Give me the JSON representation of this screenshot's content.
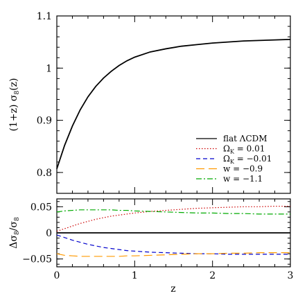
{
  "chart_data": [
    {
      "type": "line",
      "panel": "top",
      "ylabel": "(1+z)  σ8(z)",
      "ylabel_parts": {
        "prefix": "(1+z)  σ",
        "sub": "8",
        "suffix": "(z)"
      },
      "xlim": [
        0,
        3
      ],
      "ylim": [
        0.76,
        1.1
      ],
      "yticks": [
        0.8,
        0.9,
        1,
        1.1
      ],
      "ytick_labels": [
        "0.8",
        "0.9",
        "1",
        "1.1"
      ],
      "legend": "bottom-right",
      "x": [
        0,
        0.1,
        0.2,
        0.3,
        0.4,
        0.5,
        0.6,
        0.7,
        0.8,
        0.9,
        1.0,
        1.2,
        1.4,
        1.6,
        1.8,
        2.0,
        2.2,
        2.4,
        2.6,
        2.8,
        3.0
      ],
      "series": [
        {
          "name": "flat ΛCDM",
          "style": "solid",
          "color": "#000000",
          "values": [
            0.807,
            0.852,
            0.889,
            0.92,
            0.945,
            0.965,
            0.981,
            0.994,
            1.005,
            1.014,
            1.021,
            1.031,
            1.037,
            1.042,
            1.045,
            1.048,
            1.05,
            1.052,
            1.053,
            1.054,
            1.055
          ]
        }
      ],
      "legend_entries": [
        {
          "name": "flat ΛCDM",
          "style": "solid",
          "color": "#000000"
        },
        {
          "name": "ΩK = 0.01",
          "parts": {
            "pre": "Ω",
            "sub": "K",
            "post": " = 0.01"
          },
          "style": "dotted",
          "color": "#cc0000"
        },
        {
          "name": "ΩK = −0.01",
          "parts": {
            "pre": "Ω",
            "sub": "K",
            "post": " = −0.01"
          },
          "style": "dashed",
          "color": "#0000cc"
        },
        {
          "name": "w = −0.9",
          "style": "longdash",
          "color": "#ff9900"
        },
        {
          "name": "w = −1.1",
          "style": "dashdot",
          "color": "#00aa00"
        }
      ]
    },
    {
      "type": "line",
      "panel": "bottom",
      "xlabel": "z",
      "ylabel": "Δσ8/σ8",
      "ylabel_parts": {
        "a": "Δσ",
        "sub1": "8",
        "b": "/σ",
        "sub2": "8"
      },
      "xlim": [
        0,
        3
      ],
      "ylim": [
        -0.065,
        0.065
      ],
      "xticks": [
        0,
        1,
        2,
        3
      ],
      "xtick_labels": [
        "0",
        "1",
        "2",
        "3"
      ],
      "yticks": [
        -0.05,
        0,
        0.05
      ],
      "ytick_labels": [
        "−0.05",
        "0",
        "0.05"
      ],
      "x": [
        0,
        0.1,
        0.2,
        0.3,
        0.4,
        0.5,
        0.6,
        0.7,
        0.8,
        0.9,
        1.0,
        1.2,
        1.4,
        1.6,
        1.8,
        2.0,
        2.2,
        2.4,
        2.6,
        2.8,
        3.0
      ],
      "series": [
        {
          "name": "flat ΛCDM",
          "style": "solid",
          "color": "#000000",
          "values": [
            0,
            0,
            0,
            0,
            0,
            0,
            0,
            0,
            0,
            0,
            0,
            0,
            0,
            0,
            0,
            0,
            0,
            0,
            0,
            0,
            0
          ]
        },
        {
          "name": "ΩK = 0.01",
          "style": "dotted",
          "color": "#cc0000",
          "values": [
            0.003,
            0.008,
            0.013,
            0.018,
            0.022,
            0.026,
            0.029,
            0.032,
            0.034,
            0.036,
            0.038,
            0.041,
            0.043,
            0.045,
            0.047,
            0.048,
            0.049,
            0.05,
            0.05,
            0.051,
            0.051
          ]
        },
        {
          "name": "ΩK = −0.01",
          "style": "dashed",
          "color": "#0000cc",
          "values": [
            -0.004,
            -0.009,
            -0.014,
            -0.018,
            -0.022,
            -0.025,
            -0.028,
            -0.03,
            -0.032,
            -0.034,
            -0.035,
            -0.037,
            -0.038,
            -0.039,
            -0.04,
            -0.04,
            -0.041,
            -0.041,
            -0.041,
            -0.041,
            -0.041
          ]
        },
        {
          "name": "w = −0.9",
          "style": "longdash",
          "color": "#ff9900",
          "values": [
            -0.04,
            -0.043,
            -0.044,
            -0.045,
            -0.045,
            -0.045,
            -0.045,
            -0.045,
            -0.045,
            -0.044,
            -0.044,
            -0.043,
            -0.042,
            -0.041,
            -0.04,
            -0.04,
            -0.039,
            -0.039,
            -0.038,
            -0.038,
            -0.038
          ]
        },
        {
          "name": "w = −1.1",
          "style": "dashdot",
          "color": "#00aa00",
          "values": [
            0.04,
            0.042,
            0.043,
            0.044,
            0.044,
            0.044,
            0.044,
            0.044,
            0.043,
            0.043,
            0.042,
            0.041,
            0.04,
            0.039,
            0.038,
            0.038,
            0.037,
            0.037,
            0.036,
            0.036,
            0.036
          ]
        }
      ]
    }
  ]
}
